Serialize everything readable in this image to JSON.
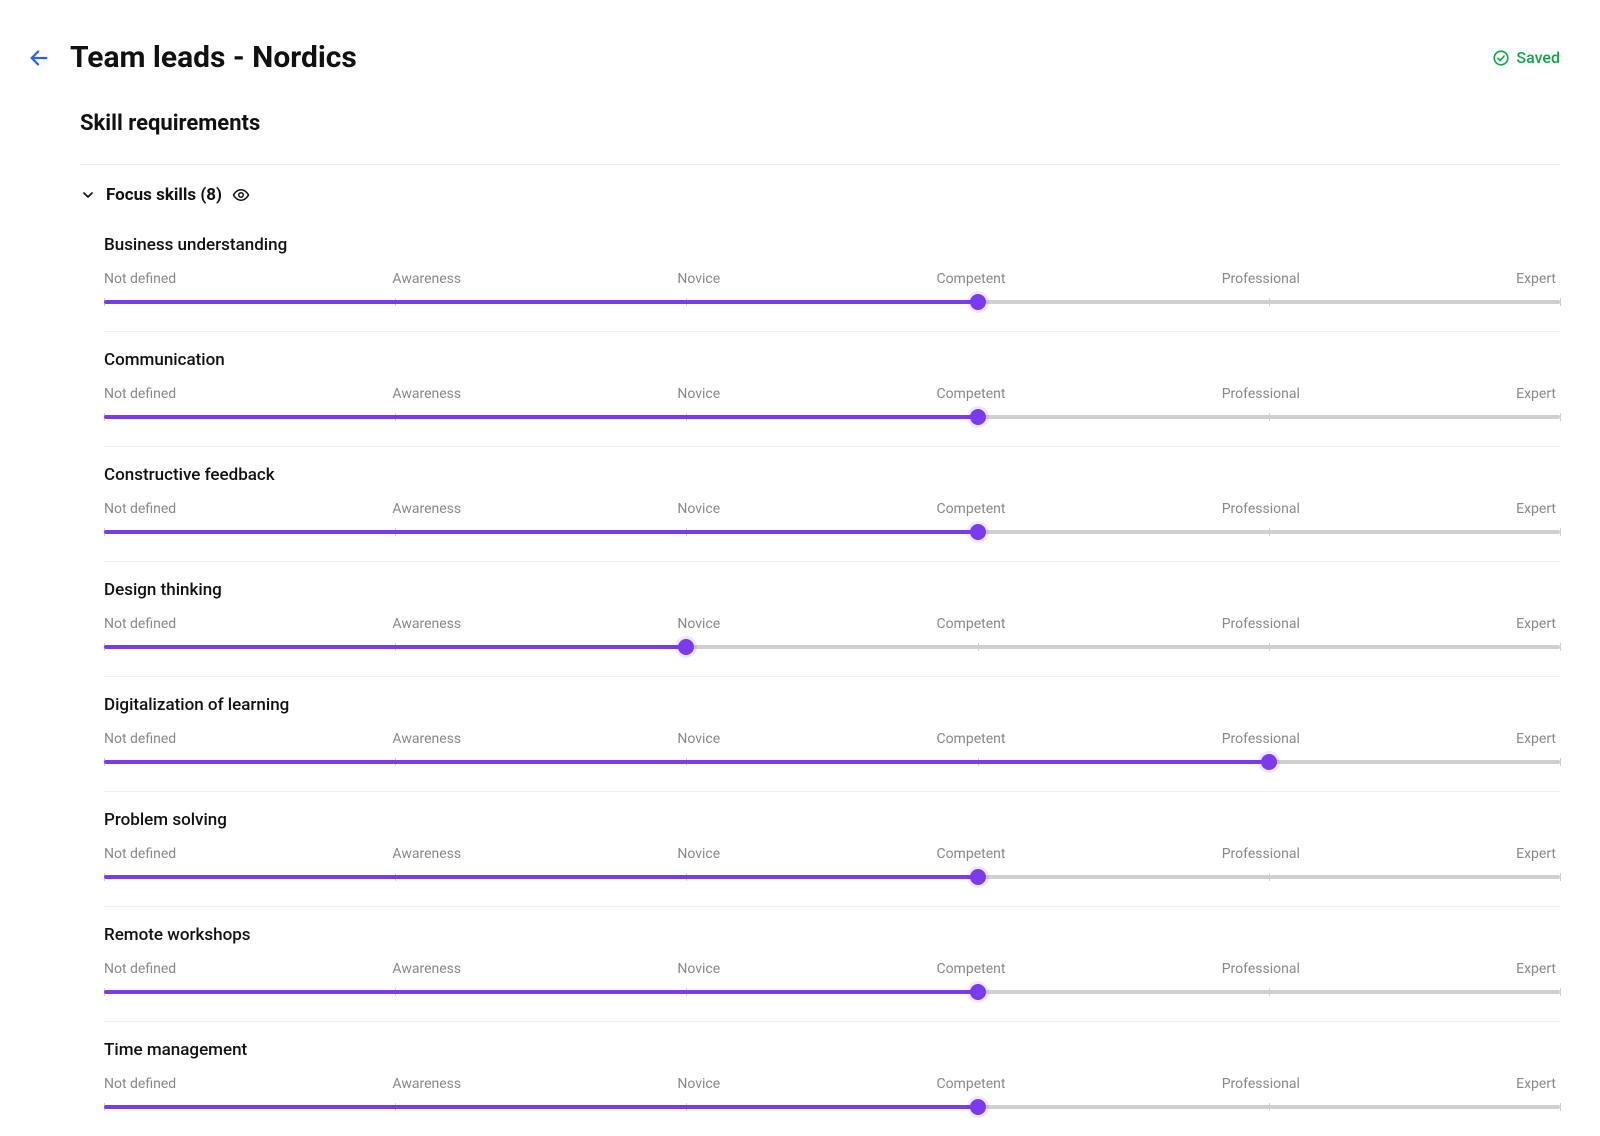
{
  "colors": {
    "accent": "#7c3aed",
    "track": "#cfcfcf",
    "fill": "#7c3aed",
    "text": "#111111",
    "muted": "#888888",
    "saved": "#16a34a",
    "back": "#2563eb",
    "divider": "#eeeeee"
  },
  "header": {
    "title": "Team leads - Nordics",
    "saved_label": "Saved"
  },
  "section": {
    "title": "Skill requirements"
  },
  "group": {
    "title": "Focus skills (8)",
    "expanded": true
  },
  "levels": [
    "Not defined",
    "Awareness",
    "Novice",
    "Competent",
    "Professional",
    "Expert"
  ],
  "slider": {
    "min": 0,
    "max": 5,
    "tick_positions_pct": [
      0,
      20,
      40,
      60,
      80,
      100
    ]
  },
  "skills": [
    {
      "name": "Business understanding",
      "value": 3
    },
    {
      "name": "Communication",
      "value": 3
    },
    {
      "name": "Constructive feedback",
      "value": 3
    },
    {
      "name": "Design thinking",
      "value": 2
    },
    {
      "name": "Digitalization of learning",
      "value": 4
    },
    {
      "name": "Problem solving",
      "value": 3
    },
    {
      "name": "Remote workshops",
      "value": 3
    },
    {
      "name": "Time management",
      "value": 3
    }
  ]
}
